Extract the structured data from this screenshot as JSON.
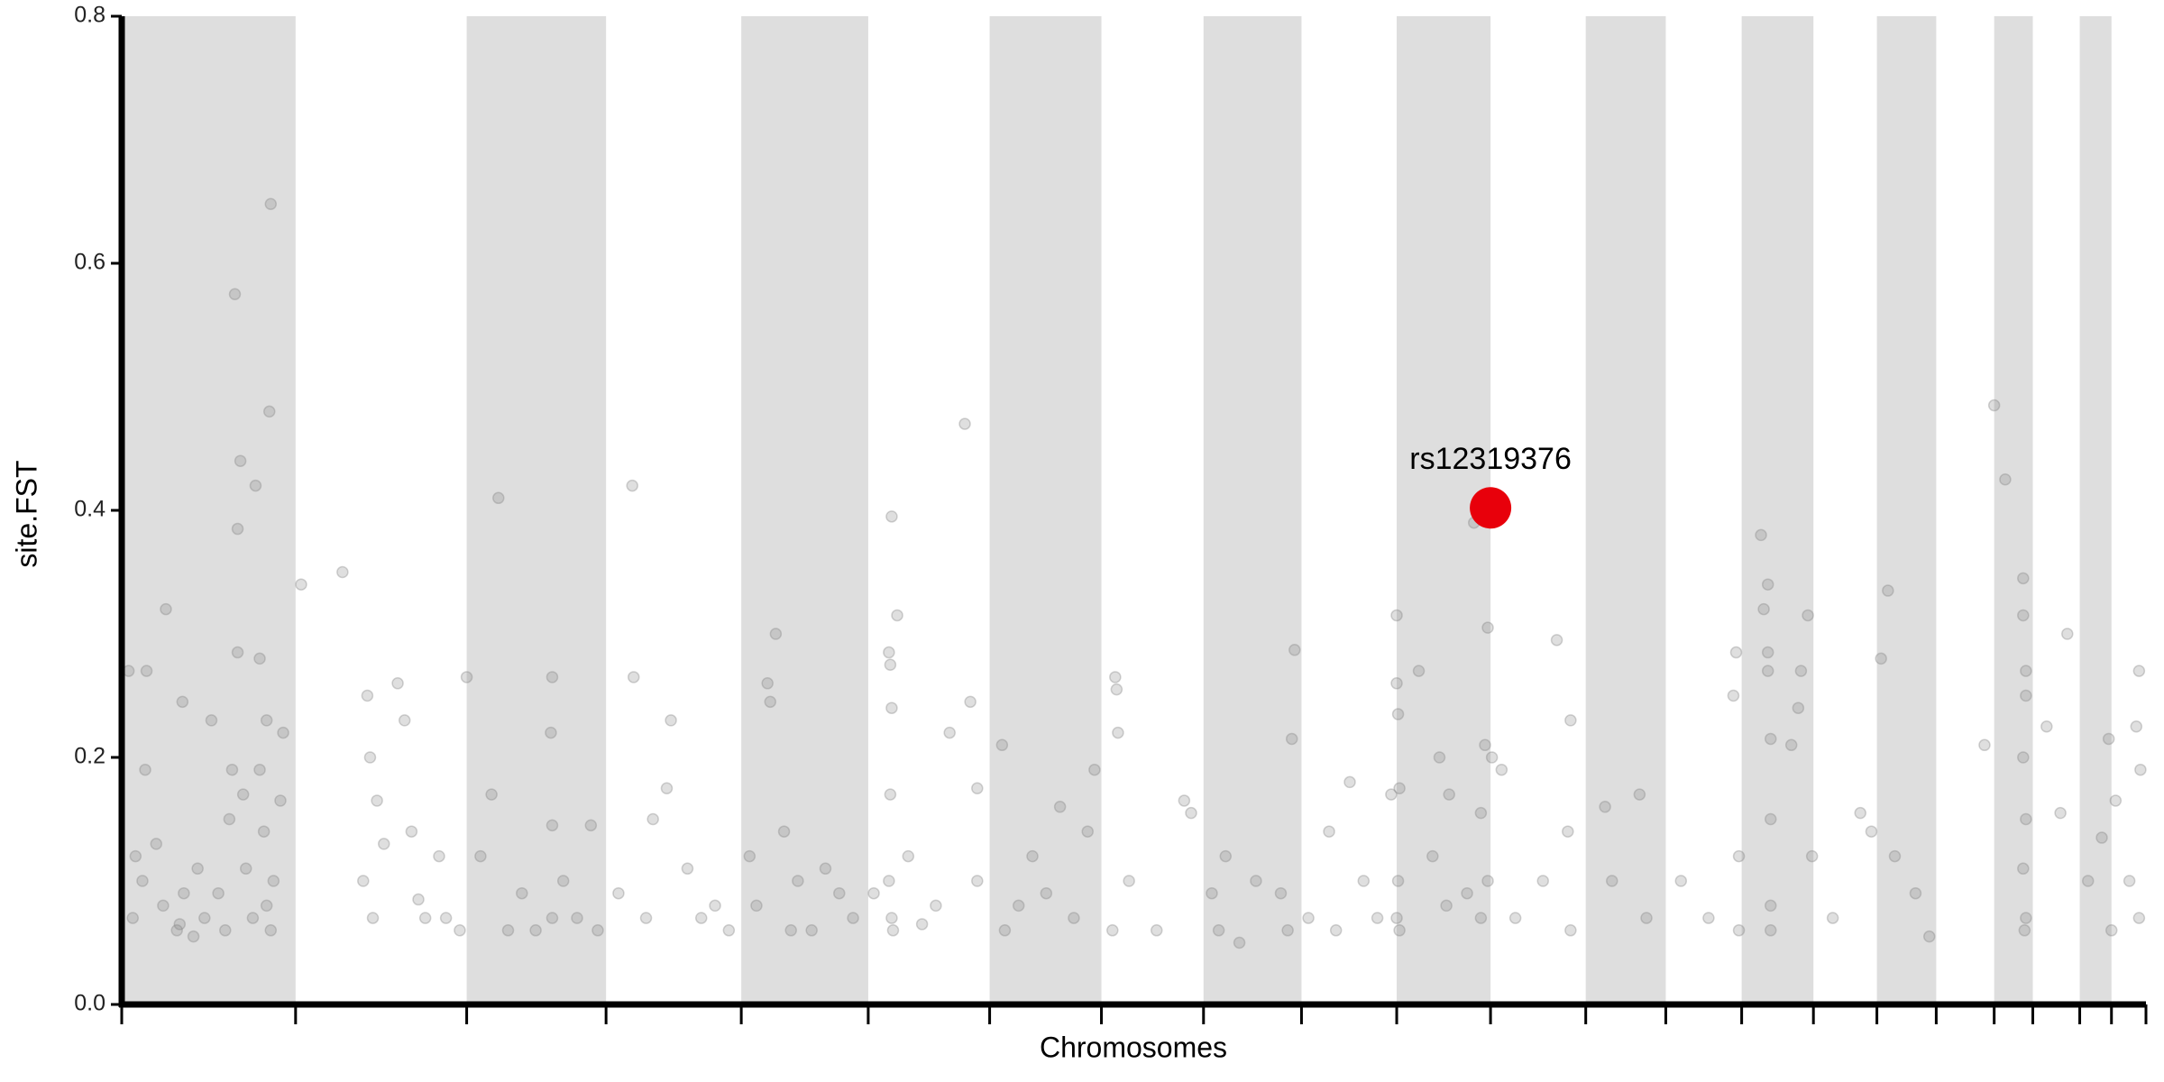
{
  "chart_data": {
    "type": "scatter",
    "xlabel": "Chromosomes",
    "ylabel": "site.FST",
    "xlim": [
      0,
      1467
    ],
    "ylim": [
      0,
      0.8
    ],
    "yticks": [
      {
        "value": 0,
        "label": "0.0"
      },
      0.2,
      0.4,
      0.6,
      0.8
    ],
    "xticks": [
      0,
      126,
      250,
      351,
      449,
      541,
      629,
      710,
      784,
      855,
      924,
      992,
      1061,
      1119,
      1174,
      1226,
      1272,
      1315,
      1357,
      1385,
      1419,
      1442,
      1467
    ],
    "band_color": "#dedede",
    "series": [
      {
        "color": "#808080",
        "opacity": 0.25,
        "x": [
          5,
          17,
          18,
          32,
          44,
          82,
          86,
          84,
          97,
          108,
          107,
          84,
          100,
          117,
          10,
          8,
          15,
          25,
          30,
          40,
          45,
          55,
          60,
          70,
          78,
          80,
          90,
          95,
          100,
          105,
          105,
          108,
          110,
          115,
          42,
          52,
          65,
          75,
          88,
          103,
          130,
          160,
          178,
          180,
          185,
          182,
          200,
          210,
          215,
          230,
          235,
          190,
          220,
          175,
          205,
          245,
          250,
          273,
          268,
          290,
          312,
          311,
          312,
          300,
          260,
          280,
          320,
          340,
          345,
          330,
          312,
          371,
          370,
          380,
          398,
          395,
          410,
          420,
          430,
          440,
          385,
          360,
          468,
          474,
          470,
          460,
          480,
          490,
          500,
          510,
          520,
          530,
          455,
          485,
          558,
          562,
          556,
          557,
          558,
          557,
          556,
          558,
          559,
          570,
          590,
          600,
          611,
          615,
          620,
          620,
          580,
          545,
          638,
          640,
          650,
          660,
          670,
          680,
          690,
          700,
          705,
          720,
          721,
          722,
          718,
          730,
          750,
          770,
          775,
          790,
          795,
          800,
          810,
          822,
          840,
          850,
          848,
          845,
          860,
          875,
          880,
          890,
          900,
          910,
          920,
          924,
          924,
          925,
          926,
          925,
          924,
          926,
          940,
          950,
          955,
          962,
          960,
          975,
          980,
          985,
          990,
          988,
          993,
          990,
          985,
          1000,
          1010,
          1040,
          1030,
          1050,
          1048,
          1050,
          1075,
          1080,
          1100,
          1105,
          1130,
          1150,
          1170,
          1168,
          1172,
          1172,
          1190,
          1188,
          1193,
          1193,
          1193,
          1195,
          1195,
          1195,
          1195,
          1210,
          1217,
          1222,
          1215,
          1225,
          1240,
          1260,
          1268,
          1280,
          1275,
          1285,
          1300,
          1310,
          1350,
          1357,
          1365,
          1378,
          1378,
          1380,
          1380,
          1378,
          1380,
          1378,
          1380,
          1379,
          1395,
          1410,
          1425,
          1440,
          1445,
          1442,
          1462,
          1460,
          1463,
          1462,
          1455,
          1405,
          1435
        ],
        "values": [
          0.27,
          0.19,
          0.27,
          0.32,
          0.245,
          0.575,
          0.44,
          0.385,
          0.42,
          0.648,
          0.48,
          0.285,
          0.28,
          0.22,
          0.12,
          0.07,
          0.1,
          0.13,
          0.08,
          0.06,
          0.09,
          0.11,
          0.07,
          0.09,
          0.15,
          0.19,
          0.11,
          0.07,
          0.19,
          0.23,
          0.08,
          0.06,
          0.1,
          0.165,
          0.065,
          0.055,
          0.23,
          0.06,
          0.17,
          0.14,
          0.34,
          0.35,
          0.25,
          0.2,
          0.165,
          0.07,
          0.26,
          0.14,
          0.085,
          0.12,
          0.07,
          0.13,
          0.07,
          0.1,
          0.23,
          0.06,
          0.265,
          0.41,
          0.17,
          0.09,
          0.265,
          0.22,
          0.145,
          0.06,
          0.12,
          0.06,
          0.1,
          0.145,
          0.06,
          0.07,
          0.07,
          0.265,
          0.42,
          0.07,
          0.23,
          0.175,
          0.11,
          0.07,
          0.08,
          0.06,
          0.15,
          0.09,
          0.26,
          0.3,
          0.245,
          0.08,
          0.14,
          0.1,
          0.06,
          0.11,
          0.09,
          0.07,
          0.12,
          0.06,
          0.395,
          0.315,
          0.285,
          0.275,
          0.24,
          0.17,
          0.1,
          0.07,
          0.06,
          0.12,
          0.08,
          0.22,
          0.47,
          0.245,
          0.175,
          0.1,
          0.065,
          0.09,
          0.21,
          0.06,
          0.08,
          0.12,
          0.09,
          0.16,
          0.07,
          0.14,
          0.19,
          0.265,
          0.255,
          0.22,
          0.06,
          0.1,
          0.06,
          0.165,
          0.155,
          0.09,
          0.06,
          0.12,
          0.05,
          0.1,
          0.09,
          0.287,
          0.215,
          0.06,
          0.07,
          0.14,
          0.06,
          0.18,
          0.1,
          0.07,
          0.17,
          0.315,
          0.26,
          0.235,
          0.175,
          0.1,
          0.07,
          0.06,
          0.27,
          0.12,
          0.2,
          0.17,
          0.08,
          0.09,
          0.39,
          0.155,
          0.305,
          0.21,
          0.2,
          0.1,
          0.07,
          0.19,
          0.07,
          0.295,
          0.1,
          0.23,
          0.14,
          0.06,
          0.16,
          0.1,
          0.17,
          0.07,
          0.1,
          0.07,
          0.285,
          0.25,
          0.12,
          0.06,
          0.32,
          0.38,
          0.34,
          0.285,
          0.27,
          0.215,
          0.15,
          0.08,
          0.06,
          0.21,
          0.27,
          0.315,
          0.24,
          0.12,
          0.07,
          0.155,
          0.14,
          0.335,
          0.28,
          0.12,
          0.09,
          0.055,
          0.21,
          0.485,
          0.425,
          0.345,
          0.315,
          0.27,
          0.25,
          0.2,
          0.15,
          0.11,
          0.07,
          0.06,
          0.225,
          0.3,
          0.1,
          0.215,
          0.165,
          0.06,
          0.27,
          0.225,
          0.19,
          0.07,
          0.1,
          0.155,
          0.135
        ]
      },
      {
        "name": "rs12319376",
        "color": "#e8000b",
        "opacity": 1,
        "x": [
          992
        ],
        "values": [
          0.402
        ]
      }
    ]
  }
}
